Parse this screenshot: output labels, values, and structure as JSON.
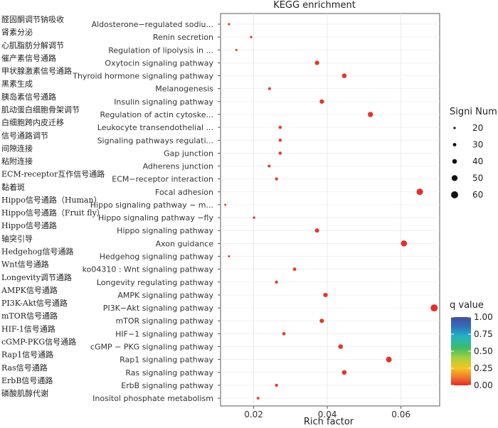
{
  "chart_data": {
    "type": "scatter",
    "title": "KEGG enrichment",
    "xlabel": "Rich factor",
    "ylabel": "",
    "xlim": [
      0.011,
      0.0705
    ],
    "xticks": [
      0.02,
      0.04,
      0.06
    ],
    "xtick_labels": [
      "0.02",
      "0.04",
      "0.06"
    ],
    "grid": true,
    "pathways": [
      {
        "cn": "醛固酮调节钠吸收",
        "en": "Aldosterone−regulated sodiu...",
        "rich": 0.0133,
        "count": 20,
        "q": 0.03
      },
      {
        "cn": "肾素分泌",
        "en": "Renin secretion",
        "rich": 0.0193,
        "count": 21,
        "q": 0.03
      },
      {
        "cn": "心肌脂肪分解调节",
        "en": "Regulation of lipolysis in ...",
        "rich": 0.0153,
        "count": 20,
        "q": 0.03
      },
      {
        "cn": "催产素信号通路",
        "en": "Oxytocin signaling pathway",
        "rich": 0.0372,
        "count": 38,
        "q": 0.02
      },
      {
        "cn": "甲状腺激素信号通路",
        "en": "Thyroid hormone signaling pathway",
        "rich": 0.0446,
        "count": 40,
        "q": 0.02
      },
      {
        "cn": "黑素生成",
        "en": "Melanogenesis",
        "rich": 0.0243,
        "count": 26,
        "q": 0.03
      },
      {
        "cn": "胰岛素信号通路",
        "en": "Insulin signaling pathway",
        "rich": 0.0385,
        "count": 38,
        "q": 0.02
      },
      {
        "cn": "肌动蛋白细胞骨架调节",
        "en": "Regulation of actin cytoske...",
        "rich": 0.0517,
        "count": 45,
        "q": 0.02
      },
      {
        "cn": "白细胞跨内皮迁移",
        "en": "Leukocyte transendothelial ...",
        "rich": 0.0272,
        "count": 28,
        "q": 0.03
      },
      {
        "cn": "信号通路调节",
        "en": "Signaling pathways regulati...",
        "rich": 0.0272,
        "count": 28,
        "q": 0.03
      },
      {
        "cn": "间隙连接",
        "en": "Gap junction",
        "rich": 0.0272,
        "count": 28,
        "q": 0.03
      },
      {
        "cn": "粘附连接",
        "en": "Adherens junction",
        "rich": 0.0242,
        "count": 26,
        "q": 0.03
      },
      {
        "cn": "ECM-receptor互作信号通路",
        "en": "ECM−receptor interaction",
        "rich": 0.0262,
        "count": 27,
        "q": 0.03
      },
      {
        "cn": "黏着斑",
        "en": "Focal adhesion",
        "rich": 0.0651,
        "count": 55,
        "q": 0.01
      },
      {
        "cn": "Hippo信号通路（Human）",
        "en": "Hippo signaling pathway − m...",
        "rich": 0.0123,
        "count": 19,
        "q": 0.03
      },
      {
        "cn": "Hippo信号通路（Fruit fly）",
        "en": "Hippo signaling pathway −fly",
        "rich": 0.0201,
        "count": 22,
        "q": 0.03
      },
      {
        "cn": "Hippo信号通路",
        "en": "Hippo signaling pathway",
        "rich": 0.0372,
        "count": 37,
        "q": 0.02
      },
      {
        "cn": "轴突引导",
        "en": "Axon guidance",
        "rich": 0.0608,
        "count": 52,
        "q": 0.01
      },
      {
        "cn": "Hedgehog信号通路",
        "en": "Hedgehog signaling pathway",
        "rich": 0.0133,
        "count": 19,
        "q": 0.03
      },
      {
        "cn": "Wnt信号通路",
        "en": "ko04310 : Wnt signaling pathway",
        "rich": 0.0311,
        "count": 30,
        "q": 0.03
      },
      {
        "cn": "Longevity调节通路",
        "en": "Longevity regulating pathway",
        "rich": 0.0262,
        "count": 27,
        "q": 0.03
      },
      {
        "cn": "AMPK信号通路",
        "en": "AMPK signaling pathway",
        "rich": 0.0395,
        "count": 38,
        "q": 0.02
      },
      {
        "cn": "PI3K-Akt信号通路",
        "en": "PI3K−Akt signaling pathway",
        "rich": 0.069,
        "count": 60,
        "q": 0.01
      },
      {
        "cn": "mTOR信号通路",
        "en": "mTOR signaling pathway",
        "rich": 0.0385,
        "count": 37,
        "q": 0.02
      },
      {
        "cn": "HIF-1信号通路",
        "en": "HIF−1 signaling pathway",
        "rich": 0.0282,
        "count": 29,
        "q": 0.03
      },
      {
        "cn": "cGMP-PKG信号通路",
        "en": "cGMP − PKG signaling pathway",
        "rich": 0.0436,
        "count": 40,
        "q": 0.02
      },
      {
        "cn": "Rap1信号通路",
        "en": "Rap1 signaling pathway",
        "rich": 0.0567,
        "count": 48,
        "q": 0.01
      },
      {
        "cn": "Ras信号通路",
        "en": "Ras signaling pathway",
        "rich": 0.0446,
        "count": 40,
        "q": 0.02
      },
      {
        "cn": "ErbB信号通路",
        "en": "ErbB signaling pathway",
        "rich": 0.0262,
        "count": 27,
        "q": 0.03
      },
      {
        "cn": "磷酸肌醇代谢",
        "en": "Inositol phosphate metabolism",
        "rich": 0.0212,
        "count": 24,
        "q": 0.03
      }
    ],
    "size_legend": {
      "title": "Signi Num",
      "values": [
        20,
        30,
        40,
        50,
        60
      ],
      "labels": [
        "20",
        "30",
        "40",
        "50",
        "60"
      ]
    },
    "color_legend": {
      "title": "q value",
      "range": [
        0.0,
        1.0
      ],
      "ticks": [
        1.0,
        0.75,
        0.5,
        0.25,
        0.0
      ],
      "tick_labels": [
        "1.00",
        "0.75",
        "0.50",
        "0.25",
        "0.00"
      ],
      "colors": [
        "#e8262b",
        "#f0792b",
        "#f6c424",
        "#a8d13b",
        "#3cbc6a",
        "#22b3c6",
        "#2f6fbd",
        "#474d9e"
      ]
    }
  }
}
